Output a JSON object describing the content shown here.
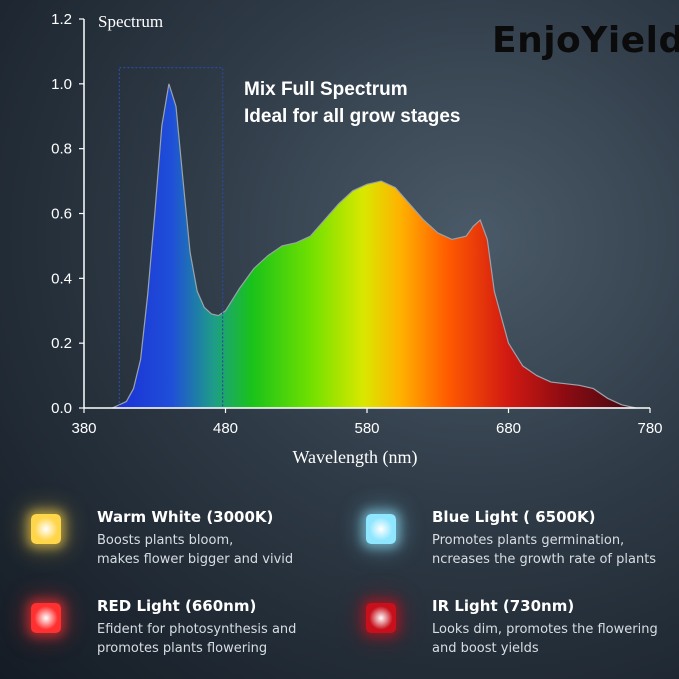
{
  "brand": {
    "logo_text": "EnjoYield",
    "logo_display": "EnjoYield"
  },
  "headline": {
    "line1": "Mix Full Spectrum",
    "line2": "Ideal for all grow stages"
  },
  "chart_data": {
    "type": "area",
    "title": "Spectrum",
    "xlabel": "Wavelength (nm)",
    "ylabel": "",
    "xlim": [
      380,
      780
    ],
    "ylim": [
      0,
      1.2
    ],
    "xticks": [
      380,
      480,
      580,
      680,
      780
    ],
    "yticks": [
      0.0,
      0.2,
      0.4,
      0.6,
      0.8,
      1.0,
      1.2
    ],
    "ytick_labels": [
      "0.0",
      "0.2",
      "0.4",
      "0.6",
      "0.8",
      "1.0",
      "1.2"
    ],
    "grid": false,
    "highlight_box": {
      "x_range": [
        405,
        478
      ],
      "y_range": [
        0,
        1.05
      ]
    },
    "series": [
      {
        "x": [
          400,
          410,
          415,
          420,
          425,
          430,
          435,
          440,
          445,
          450,
          455,
          460,
          465,
          470,
          475,
          480,
          490,
          500,
          510,
          520,
          530,
          540,
          550,
          560,
          570,
          580,
          590,
          600,
          610,
          620,
          630,
          640,
          650,
          655,
          660,
          665,
          670,
          680,
          690,
          700,
          710,
          720,
          730,
          740,
          750,
          760,
          770
        ],
        "values": [
          0.0,
          0.02,
          0.06,
          0.15,
          0.35,
          0.6,
          0.87,
          1.0,
          0.93,
          0.7,
          0.48,
          0.36,
          0.31,
          0.29,
          0.285,
          0.3,
          0.37,
          0.43,
          0.47,
          0.5,
          0.51,
          0.53,
          0.58,
          0.63,
          0.67,
          0.69,
          0.7,
          0.68,
          0.63,
          0.58,
          0.54,
          0.52,
          0.53,
          0.56,
          0.58,
          0.52,
          0.36,
          0.2,
          0.13,
          0.1,
          0.08,
          0.075,
          0.07,
          0.06,
          0.03,
          0.01,
          0.0
        ]
      }
    ]
  },
  "legend": [
    {
      "title": "Warm White (3000K)",
      "line1": "Boosts plants bloom,",
      "line2": "makes flower bigger and vivid",
      "color": "#ffd54a"
    },
    {
      "title": "Blue Light ( 6500K)",
      "line1": "Promotes plants germination,",
      "line2": "ncreases the growth rate of plants",
      "color": "#8fe6ff"
    },
    {
      "title": "RED Light (660nm)",
      "line1": "Efident for photosynthesis and",
      "line2": "promotes plants flowering",
      "color": "#ff3030"
    },
    {
      "title": "IR Light (730nm)",
      "line1": "Looks dim, promotes the flowering",
      "line2": "and boost yields",
      "color": "#c8101c"
    }
  ]
}
